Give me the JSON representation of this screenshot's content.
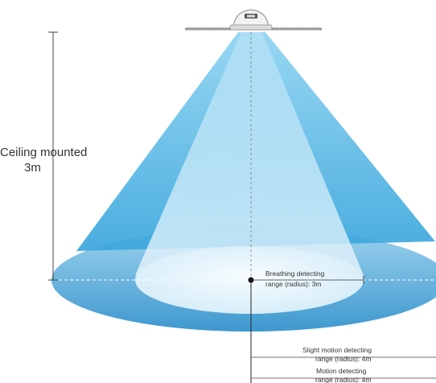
{
  "ceiling_label": {
    "line1": "Ceiling mounted",
    "line2": "3m"
  },
  "breathing_label": {
    "line1": "Breathing detecting",
    "line2": "range (radius): 3m"
  },
  "slight_motion_label": {
    "line1": "Slight motion detecting",
    "line2": "range (radius): 4m"
  },
  "motion_label": {
    "line1": "Motion detecting",
    "line2": "range (radius): 4m"
  },
  "colors": {
    "outer_cone": "#4fb3e3",
    "inner_cone": "#d6eef9",
    "outer_floor": "#5aaedb",
    "inner_floor": "#e6f4fb",
    "ceiling_line": "#999999"
  }
}
